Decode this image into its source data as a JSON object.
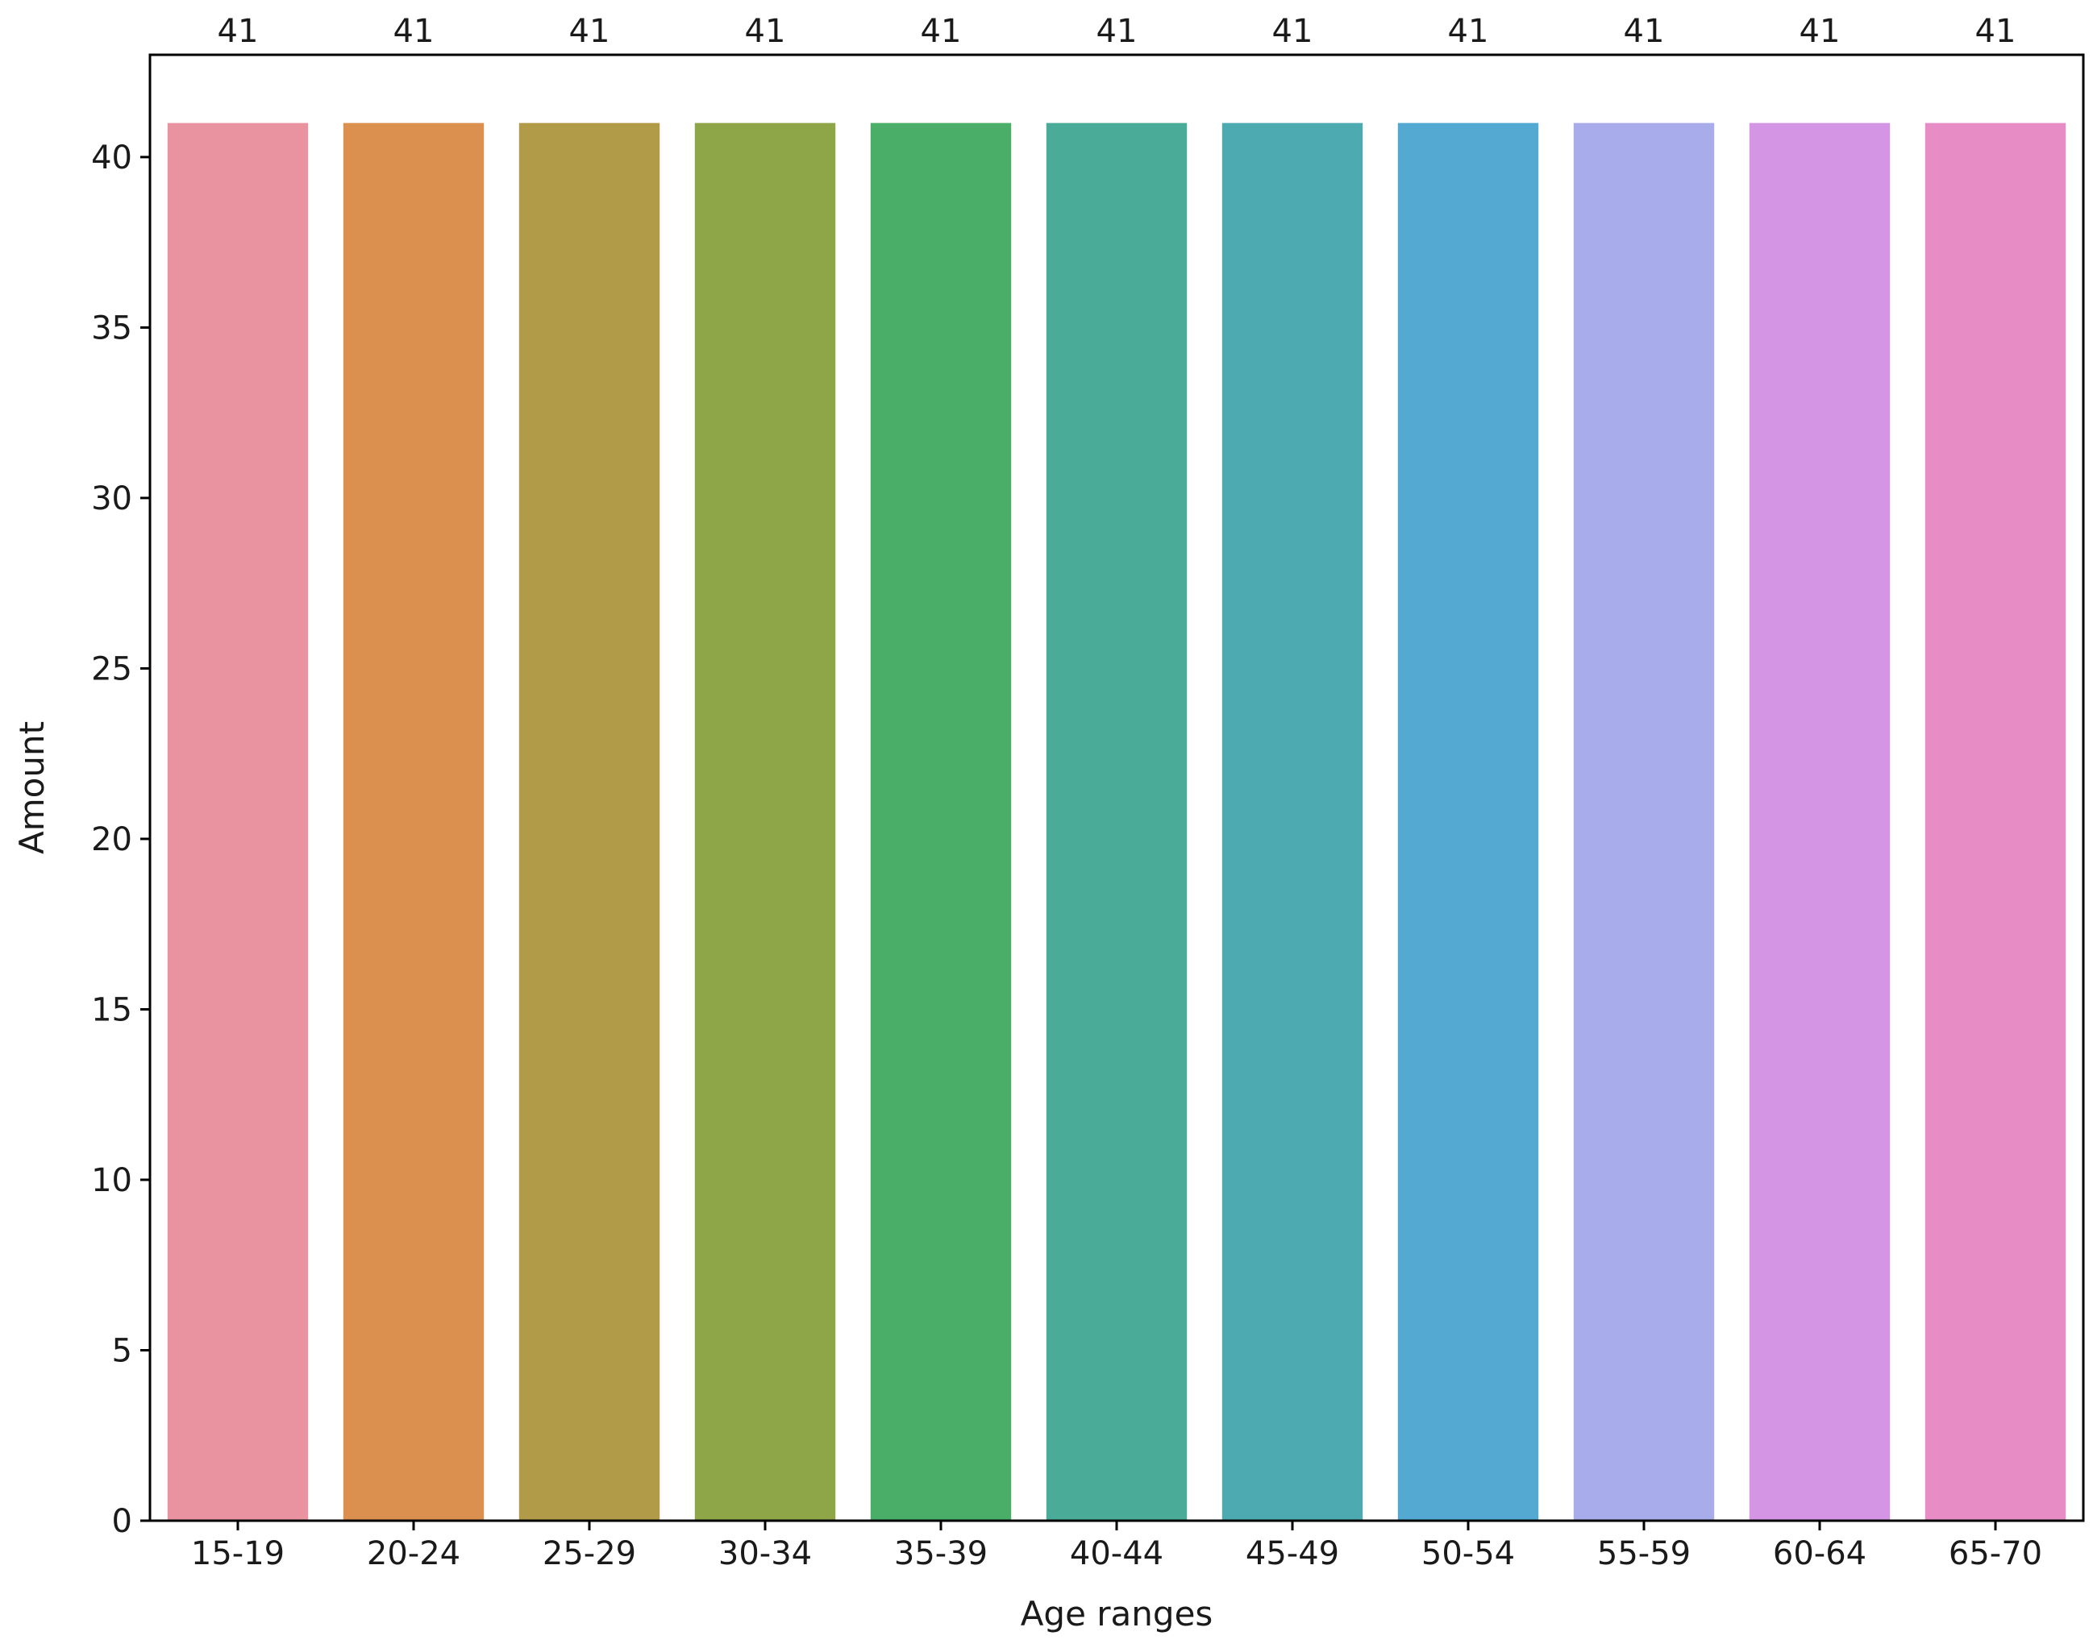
{
  "chart_data": {
    "type": "bar",
    "categories": [
      "15-19",
      "20-24",
      "25-29",
      "30-34",
      "35-39",
      "40-44",
      "45-49",
      "50-54",
      "55-59",
      "60-64",
      "65-70"
    ],
    "values": [
      41,
      41,
      41,
      41,
      41,
      41,
      41,
      41,
      41,
      41,
      41
    ],
    "data_labels": [
      "41",
      "41",
      "41",
      "41",
      "41",
      "41",
      "41",
      "41",
      "41",
      "41",
      "41"
    ],
    "colors": [
      "#e8939f",
      "#dc904f",
      "#b19b48",
      "#8ea548",
      "#4aae68",
      "#4aac98",
      "#4eaab1",
      "#53a9d2",
      "#a8aceb",
      "#d595e5",
      "#e88cc6"
    ],
    "title": "",
    "xlabel": "Age ranges",
    "ylabel": "Amount",
    "ylim": [
      0,
      43
    ],
    "yticks": [
      0,
      5,
      10,
      15,
      20,
      25,
      30,
      35,
      40
    ],
    "ytick_labels": [
      "0",
      "5",
      "10",
      "15",
      "20",
      "25",
      "30",
      "35",
      "40"
    ],
    "grid": false,
    "legend": "none"
  }
}
